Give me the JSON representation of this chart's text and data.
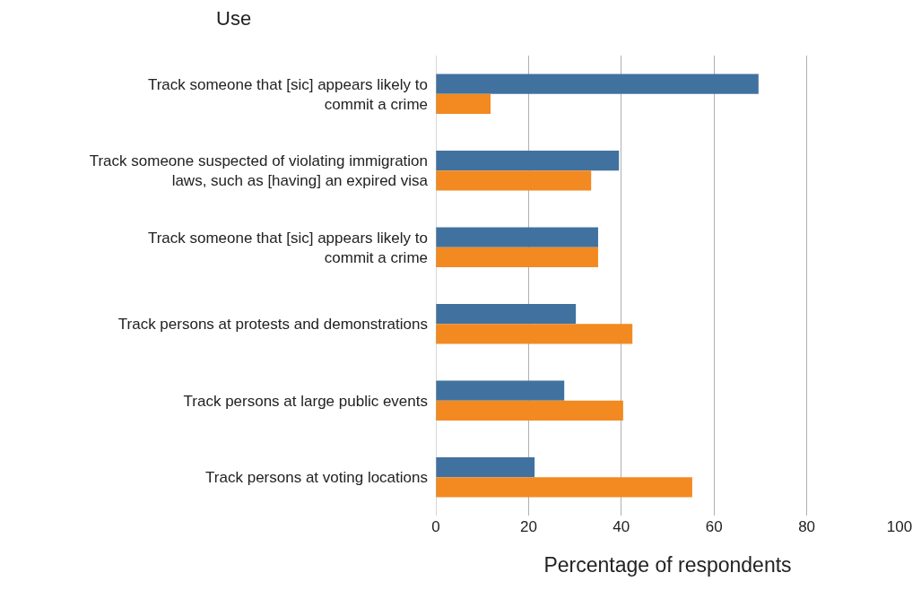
{
  "chart_data": {
    "type": "bar",
    "orientation": "horizontal",
    "ylabel": "Use",
    "xlabel": "Percentage of respondents",
    "categories": [
      "Track someone that [sic] appears likely to commit a crime",
      "Track someone suspected of violating immigration laws, such as [having] an expired visa",
      "Track someone that [sic] appears likely to commit a crime",
      "Track persons at protests and demonstrations",
      "Track persons at large public events",
      "Track persons at voting locations"
    ],
    "series": [
      {
        "color": "#41729f",
        "values": [
          69.6,
          39.5,
          35,
          30.2,
          27.7,
          21.3
        ]
      },
      {
        "color": "#f28a21",
        "values": [
          11.8,
          33.5,
          35,
          42.4,
          40.4,
          55.3
        ]
      }
    ],
    "xlim": [
      0,
      100
    ],
    "xticks": [
      0,
      20,
      40,
      60,
      80,
      100
    ],
    "grid": "x"
  }
}
